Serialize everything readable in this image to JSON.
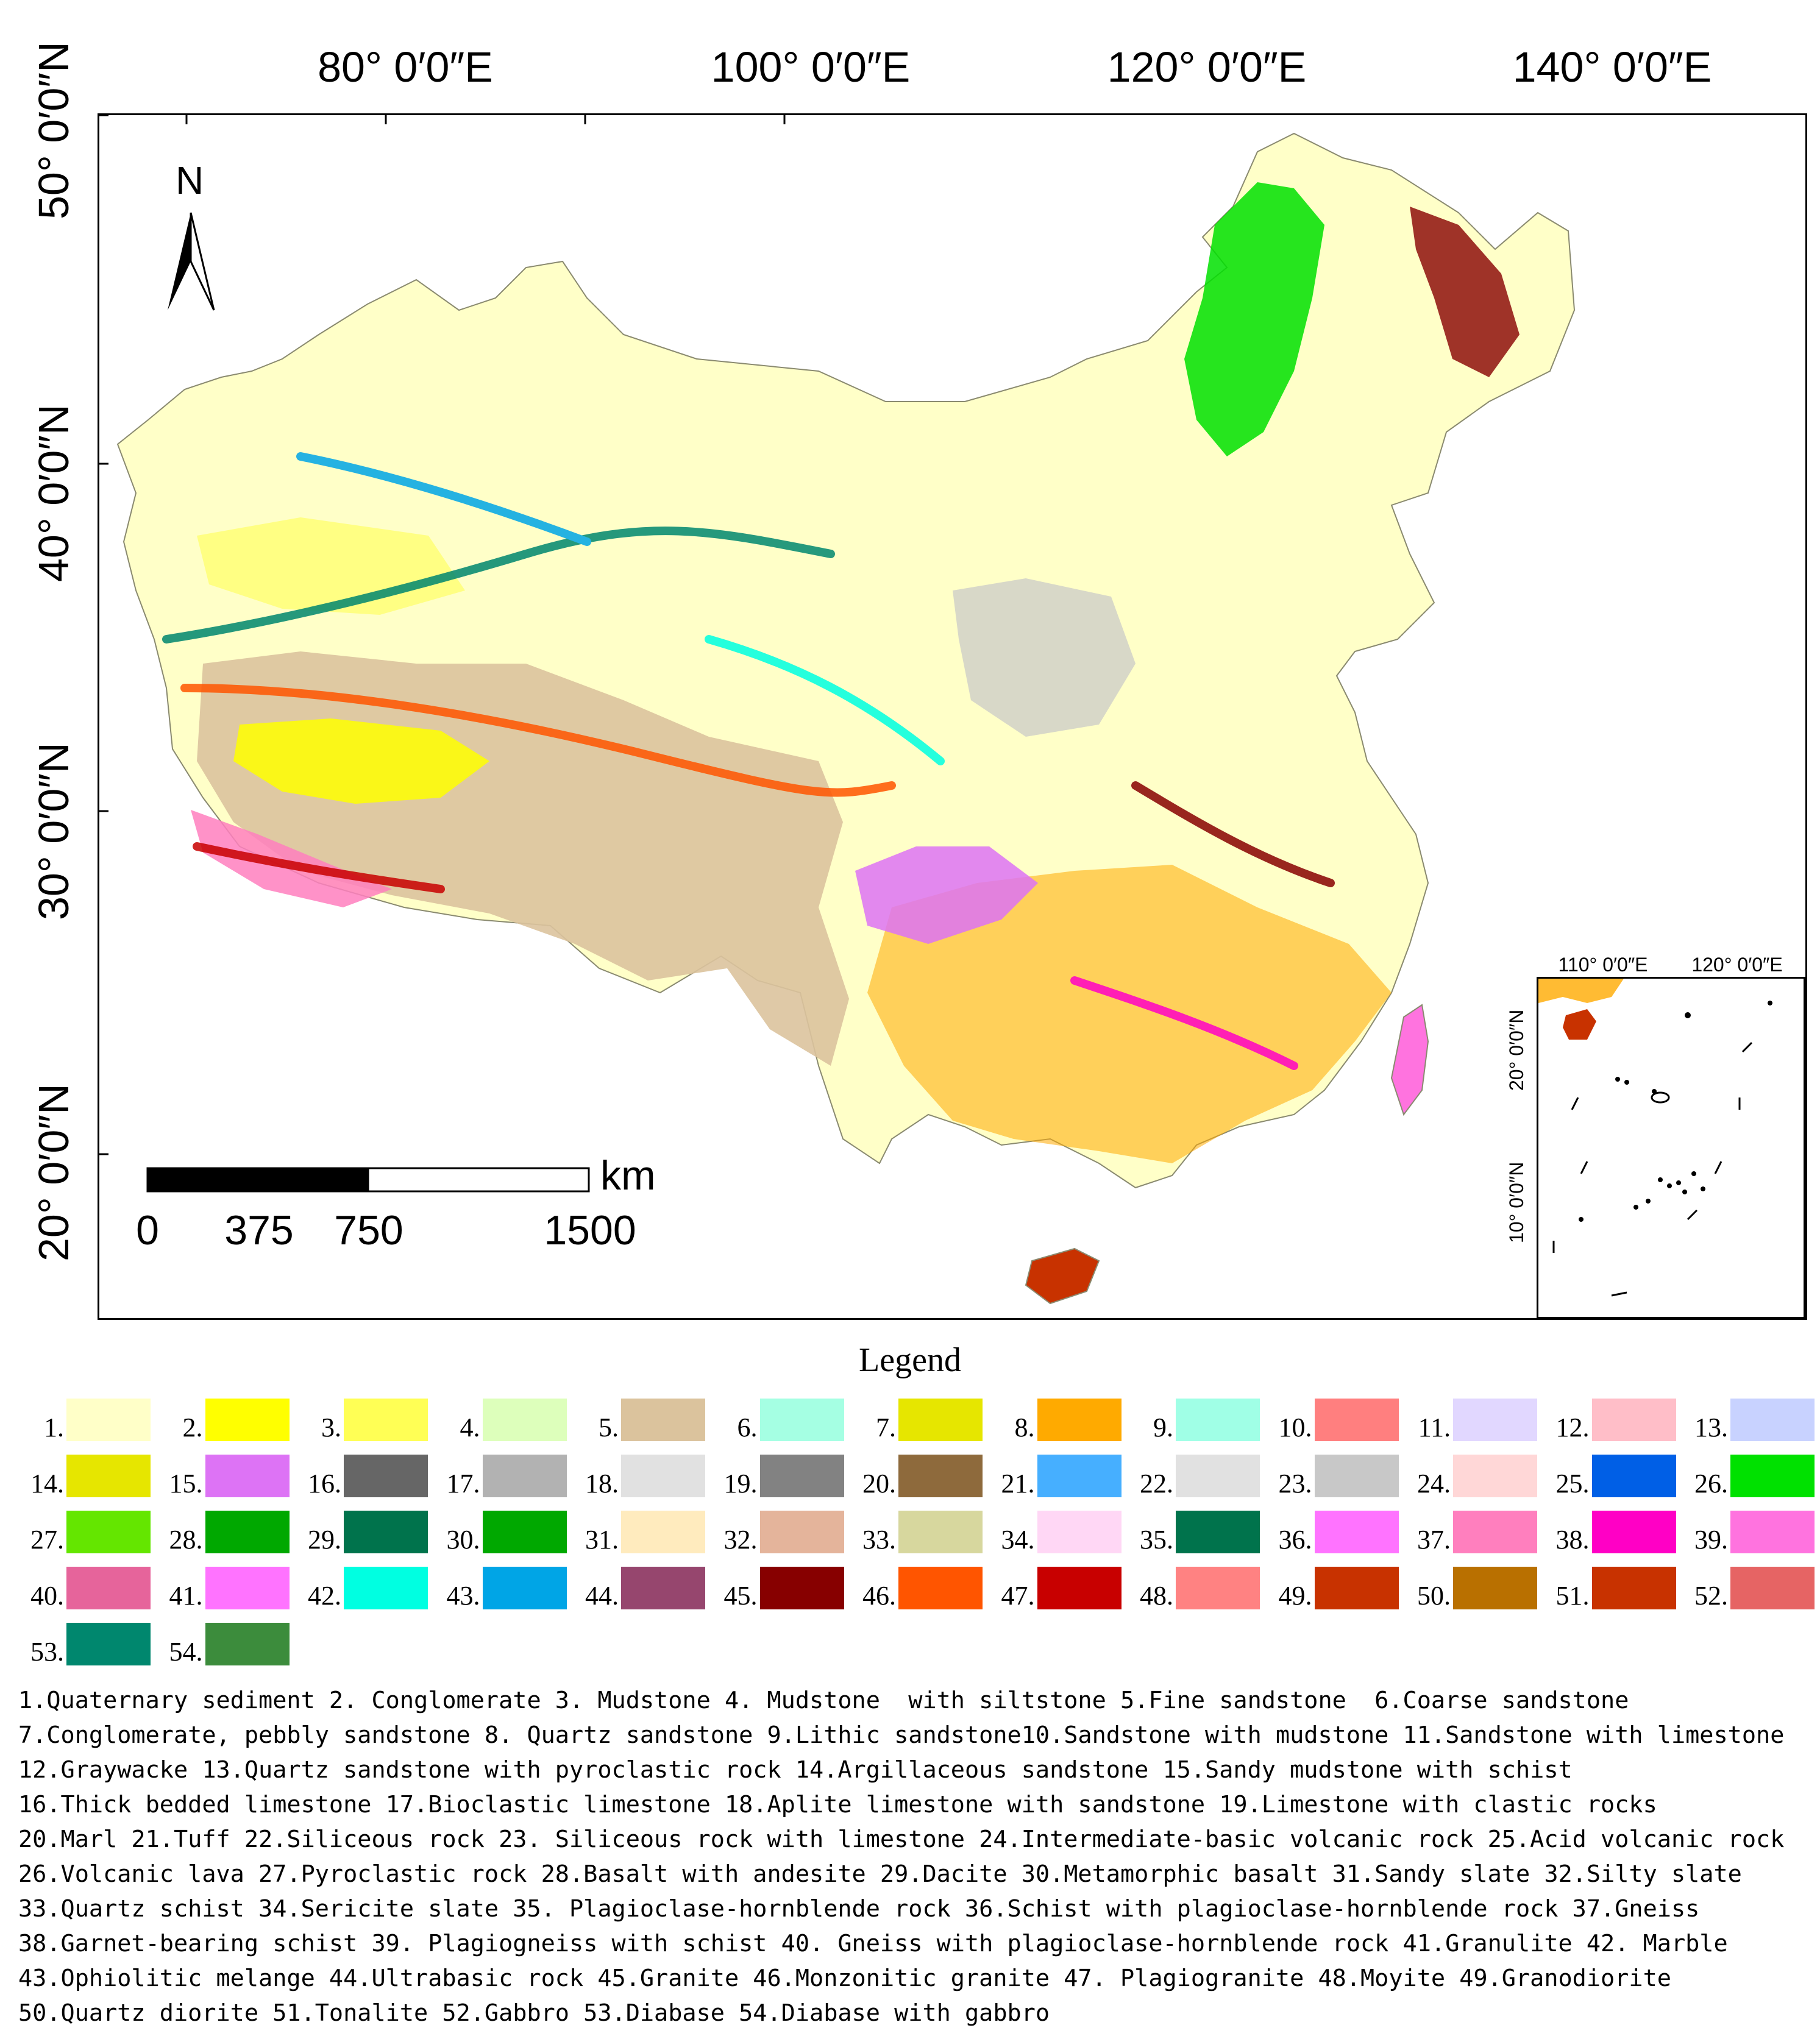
{
  "map": {
    "top_labels": [
      "80°  0′0″E",
      "100°  0′0″E",
      "120°  0′0″E",
      "140°  0′0″E"
    ],
    "left_labels": [
      "50°  0′0″N",
      "40°  0′0″N",
      "30°  0′0″N",
      "20°  0′0″N"
    ],
    "north": "N",
    "scale": {
      "unit": "km",
      "ticks": [
        "0",
        "375",
        "750",
        "1500"
      ]
    },
    "inset": {
      "top_labels": [
        "110°  0′0″E",
        "120°  0′0″E"
      ],
      "left_labels": [
        "20°  0′0″N",
        "10°  0′0″N"
      ]
    }
  },
  "legend": {
    "title": "Legend",
    "swatches": [
      {
        "num": "1.",
        "color": "#FFFFC8"
      },
      {
        "num": "2.",
        "color": "#FFFF00"
      },
      {
        "num": "3.",
        "color": "#FFFF55"
      },
      {
        "num": "4.",
        "color": "#DDFFBB"
      },
      {
        "num": "5.",
        "color": "#DBC39D"
      },
      {
        "num": "6.",
        "color": "#A5FFE3"
      },
      {
        "num": "7.",
        "color": "#E6E600"
      },
      {
        "num": "8.",
        "color": "#FFAA00"
      },
      {
        "num": "9.",
        "color": "#A0FFE6"
      },
      {
        "num": "10.",
        "color": "#FF7F7F"
      },
      {
        "num": "11.",
        "color": "#E1D7FF"
      },
      {
        "num": "12.",
        "color": "#FFBEC8"
      },
      {
        "num": "13.",
        "color": "#C8D2FF"
      },
      {
        "num": "14.",
        "color": "#E6E600"
      },
      {
        "num": "15.",
        "color": "#DD73F5"
      },
      {
        "num": "16.",
        "color": "#666666"
      },
      {
        "num": "17.",
        "color": "#B2B2B2"
      },
      {
        "num": "18.",
        "color": "#E1E1E1"
      },
      {
        "num": "19.",
        "color": "#828282"
      },
      {
        "num": "20.",
        "color": "#8E6A3C"
      },
      {
        "num": "21.",
        "color": "#46AFFF"
      },
      {
        "num": "22.",
        "color": "#E1E1E1"
      },
      {
        "num": "23.",
        "color": "#C8C8C8"
      },
      {
        "num": "24.",
        "color": "#FFD7D7"
      },
      {
        "num": "25.",
        "color": "#005FE6"
      },
      {
        "num": "26.",
        "color": "#00E100"
      },
      {
        "num": "27.",
        "color": "#64E600"
      },
      {
        "num": "28.",
        "color": "#00A800"
      },
      {
        "num": "29.",
        "color": "#00734C"
      },
      {
        "num": "30.",
        "color": "#00A800"
      },
      {
        "num": "31.",
        "color": "#FFEBBE"
      },
      {
        "num": "32.",
        "color": "#E4B49B"
      },
      {
        "num": "33.",
        "color": "#D7D79E"
      },
      {
        "num": "34.",
        "color": "#FFD7F5"
      },
      {
        "num": "35.",
        "color": "#00734C"
      },
      {
        "num": "36.",
        "color": "#FF73FF"
      },
      {
        "num": "37.",
        "color": "#FF7FBE"
      },
      {
        "num": "38.",
        "color": "#FF00C5"
      },
      {
        "num": "39.",
        "color": "#FF73DF"
      },
      {
        "num": "40.",
        "color": "#E6649B"
      },
      {
        "num": "41.",
        "color": "#FF73FF"
      },
      {
        "num": "42.",
        "color": "#00FFE1"
      },
      {
        "num": "43.",
        "color": "#00A5E6"
      },
      {
        "num": "44.",
        "color": "#96466E"
      },
      {
        "num": "45.",
        "color": "#870000"
      },
      {
        "num": "46.",
        "color": "#FF5500"
      },
      {
        "num": "47.",
        "color": "#C80000"
      },
      {
        "num": "48.",
        "color": "#FF8282"
      },
      {
        "num": "49.",
        "color": "#C83200"
      },
      {
        "num": "50.",
        "color": "#B97000"
      },
      {
        "num": "51.",
        "color": "#C83200"
      },
      {
        "num": "52.",
        "color": "#E66464"
      },
      {
        "num": "53.",
        "color": "#00876E"
      },
      {
        "num": "54.",
        "color": "#3C8C3C"
      }
    ],
    "descriptions": [
      "1.Quaternary sediment 2. Conglomerate 3. Mudstone 4. Mudstone  with siltstone 5.Fine sandstone  6.Coarse sandstone",
      "7.Conglomerate, pebbly sandstone 8. Quartz sandstone 9.Lithic sandstone10.Sandstone with mudstone 11.Sandstone with limestone",
      "12.Graywacke 13.Quartz sandstone with pyroclastic rock 14.Argillaceous sandstone 15.Sandy mudstone with schist",
      "16.Thick bedded limestone 17.Bioclastic limestone 18.Aplite limestone with sandstone 19.Limestone with clastic rocks",
      "20.Marl 21.Tuff 22.Siliceous rock 23. Siliceous rock with limestone 24.Intermediate-basic volcanic rock 25.Acid volcanic rock",
      "26.Volcanic lava 27.Pyroclastic rock 28.Basalt with andesite 29.Dacite 30.Metamorphic basalt 31.Sandy slate 32.Silty slate",
      "33.Quartz schist 34.Sericite slate 35. Plagioclase-hornblende rock 36.Schist with plagioclase-hornblende rock 37.Gneiss",
      "38.Garnet-bearing schist 39. Plagiogneiss with schist 40. Gneiss with plagioclase-hornblende rock 41.Granulite 42. Marble",
      "43.Ophiolitic melange 44.Ultrabasic rock 45.Granite 46.Monzonitic granite 47. Plagiogranite 48.Moyite 49.Granodiorite",
      "50.Quartz diorite 51.Tonalite 52.Gabbro 53.Diabase 54.Diabase with gabbro"
    ]
  }
}
